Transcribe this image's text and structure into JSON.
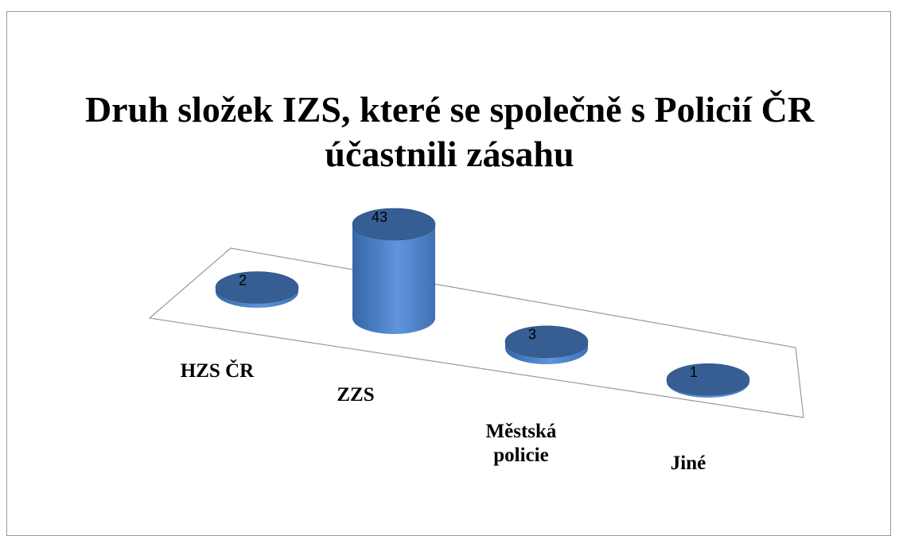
{
  "chart_data": {
    "type": "bar3d",
    "title": "Druh složek IZS, které se společně s Policií ČR účastnili zásahu",
    "categories": [
      "HZS ČR",
      "ZZS",
      "Městská policie",
      "Jiné"
    ],
    "values": [
      2,
      43,
      3,
      1
    ],
    "color": "#4a7fc8"
  }
}
